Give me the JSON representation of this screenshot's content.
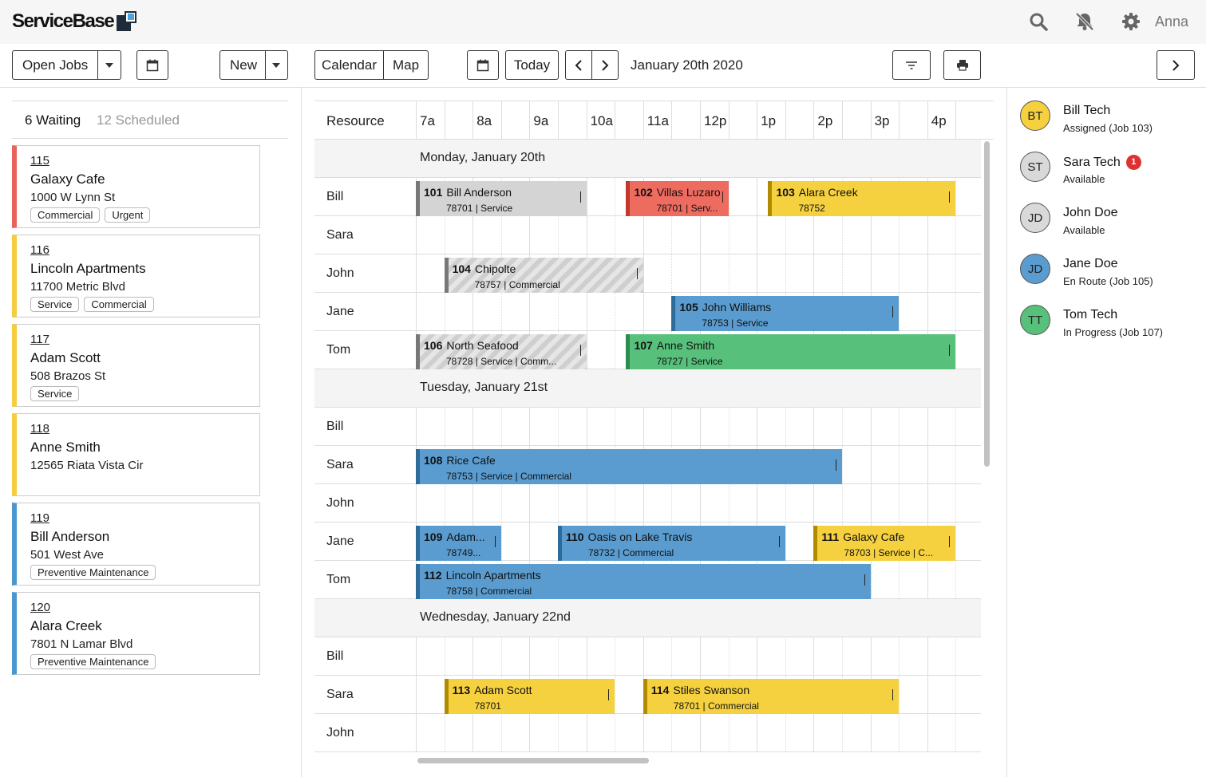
{
  "app": {
    "name": "ServiceBase",
    "user": "Anna",
    "icons": [
      "search-icon",
      "bell-off-icon",
      "gear-icon"
    ]
  },
  "toolbar": {
    "job_filter_label": "Open Jobs",
    "new_label": "New",
    "calendar_label": "Calendar",
    "map_label": "Map",
    "today_label": "Today",
    "date_title": "January 20th 2020"
  },
  "left_panel": {
    "tabs": {
      "waiting": "6 Waiting",
      "scheduled": "12 Scheduled"
    },
    "jobs": [
      {
        "number": "115",
        "name": "Galaxy Cafe",
        "address": "1000 W Lynn St",
        "tags": [
          "Commercial",
          "Urgent"
        ],
        "color": "#e8645a"
      },
      {
        "number": "116",
        "name": "Lincoln Apartments",
        "address": "11700 Metric Blvd",
        "tags": [
          "Service",
          "Commercial"
        ],
        "color": "#f5cd3f"
      },
      {
        "number": "117",
        "name": "Adam Scott",
        "address": "508 Brazos St",
        "tags": [
          "Service"
        ],
        "color": "#f5cd3f"
      },
      {
        "number": "118",
        "name": "Anne Smith",
        "address": "12565 Riata Vista Cir",
        "tags": [],
        "color": "#f5cd3f"
      },
      {
        "number": "119",
        "name": "Bill Anderson",
        "address": "501 West Ave",
        "tags": [
          "Preventive Maintenance"
        ],
        "color": "#4a97cf"
      },
      {
        "number": "120",
        "name": "Alara Creek",
        "address": "7801 N Lamar Blvd",
        "tags": [
          "Preventive Maintenance"
        ],
        "color": "#4a97cf"
      }
    ]
  },
  "schedule": {
    "resource_label": "Resource",
    "hours": [
      "7a",
      "8a",
      "9a",
      "10a",
      "11a",
      "12p",
      "1p",
      "2p",
      "3p",
      "4p"
    ],
    "start_hour": 7,
    "colors": {
      "gray": "#d4d4d4",
      "red": "#ee6b5f",
      "yellow": "#f6d13f",
      "blue": "#5a9ccf",
      "green": "#57c07b",
      "gray_bar": "#777777",
      "red_bar": "#c0392b",
      "yellow_bar": "#b08b00",
      "blue_bar": "#2f6b99",
      "green_bar": "#2e8b4f"
    },
    "days": [
      {
        "label": "Monday, January 20th",
        "rows": [
          {
            "name": "Bill",
            "events": [
              {
                "num": "101",
                "title": "Bill Anderson",
                "sub": "78701 | Service",
                "start": 7.0,
                "end": 10.0,
                "color": "gray"
              },
              {
                "num": "102",
                "title": "Villas Luzaro",
                "sub": "78701 | Serv...",
                "start": 10.7,
                "end": 12.5,
                "color": "red"
              },
              {
                "num": "103",
                "title": "Alara Creek",
                "sub": "78752",
                "start": 13.2,
                "end": 16.5,
                "color": "yellow"
              }
            ]
          },
          {
            "name": "Sara",
            "events": []
          },
          {
            "name": "John",
            "events": [
              {
                "num": "104",
                "title": "Chipolte",
                "sub": "78757 | Commercial",
                "start": 7.5,
                "end": 11.0,
                "color": "gray",
                "striped": true
              }
            ]
          },
          {
            "name": "Jane",
            "events": [
              {
                "num": "105",
                "title": "John Williams",
                "sub": "78753 | Service",
                "start": 11.5,
                "end": 15.5,
                "color": "blue"
              }
            ]
          },
          {
            "name": "Tom",
            "events": [
              {
                "num": "106",
                "title": "North Seafood",
                "sub": "78728 | Service | Comm...",
                "start": 7.0,
                "end": 10.0,
                "color": "gray",
                "striped": true
              },
              {
                "num": "107",
                "title": "Anne Smith",
                "sub": "78727 | Service",
                "start": 10.7,
                "end": 16.5,
                "color": "green"
              }
            ]
          }
        ]
      },
      {
        "label": "Tuesday, January 21st",
        "rows": [
          {
            "name": "Bill",
            "events": []
          },
          {
            "name": "Sara",
            "events": [
              {
                "num": "108",
                "title": "Rice Cafe",
                "sub": "78753 | Service | Commercial",
                "start": 7.0,
                "end": 14.5,
                "color": "blue"
              }
            ]
          },
          {
            "name": "John",
            "events": []
          },
          {
            "name": "Jane",
            "events": [
              {
                "num": "109",
                "title": "Adam...",
                "sub": "78749...",
                "start": 7.0,
                "end": 8.5,
                "color": "blue"
              },
              {
                "num": "110",
                "title": "Oasis on Lake Travis",
                "sub": "78732 | Commercial",
                "start": 9.5,
                "end": 13.5,
                "color": "blue"
              },
              {
                "num": "111",
                "title": "Galaxy Cafe",
                "sub": "78703 | Service | C...",
                "start": 14.0,
                "end": 16.5,
                "color": "yellow"
              }
            ]
          },
          {
            "name": "Tom",
            "events": [
              {
                "num": "112",
                "title": "Lincoln Apartments",
                "sub": "78758 | Commercial",
                "start": 7.0,
                "end": 15.0,
                "color": "blue"
              }
            ]
          }
        ]
      },
      {
        "label": "Wednesday, January 22nd",
        "rows": [
          {
            "name": "Bill",
            "events": []
          },
          {
            "name": "Sara",
            "events": [
              {
                "num": "113",
                "title": "Adam Scott",
                "sub": "78701",
                "start": 7.5,
                "end": 10.5,
                "color": "yellow"
              },
              {
                "num": "114",
                "title": "Stiles Swanson",
                "sub": "78701 | Commercial",
                "start": 11.0,
                "end": 15.5,
                "color": "yellow"
              }
            ]
          },
          {
            "name": "John",
            "events": []
          }
        ]
      }
    ]
  },
  "techs": [
    {
      "initials": "BT",
      "name": "Bill Tech",
      "status": "Assigned (Job 103)",
      "color": "#f6d13f",
      "badge": ""
    },
    {
      "initials": "ST",
      "name": "Sara Tech",
      "status": "Available",
      "color": "#d9d9d9",
      "badge": "1"
    },
    {
      "initials": "JD",
      "name": "John Doe",
      "status": "Available",
      "color": "#d9d9d9",
      "badge": ""
    },
    {
      "initials": "JD",
      "name": "Jane Doe",
      "status": "En Route (Job 105)",
      "color": "#5a9ccf",
      "badge": ""
    },
    {
      "initials": "TT",
      "name": "Tom Tech",
      "status": "In Progress (Job 107)",
      "color": "#57c07b",
      "badge": ""
    }
  ]
}
